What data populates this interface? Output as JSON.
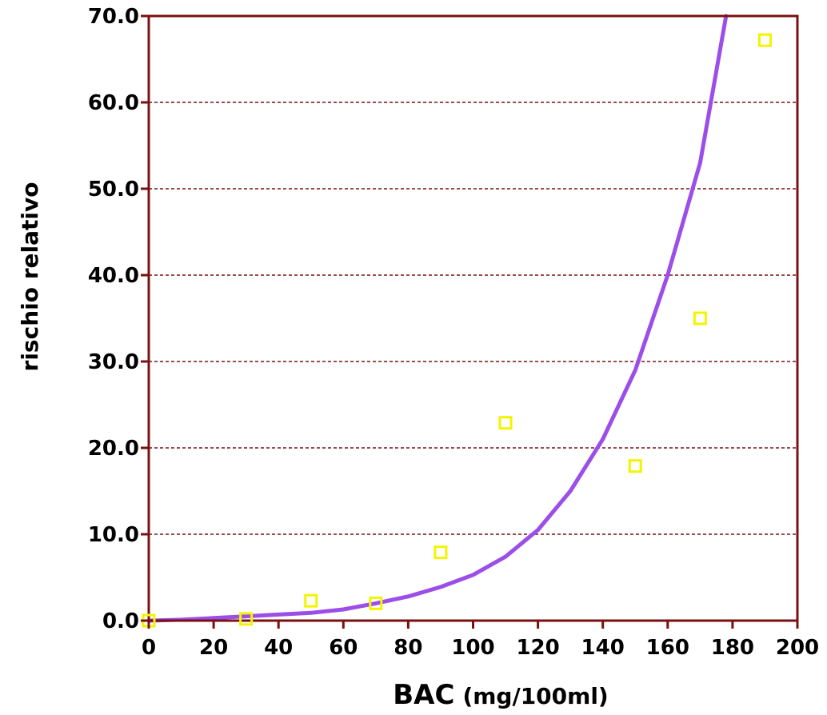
{
  "chart_data": {
    "type": "scatter",
    "xlabel_main": "BAC",
    "xlabel_unit": "(mg/100ml)",
    "ylabel": "rischio relativo",
    "xlim": [
      0,
      200
    ],
    "ylim": [
      0,
      70
    ],
    "x_ticks": [
      "0",
      "20",
      "40",
      "60",
      "80",
      "100",
      "120",
      "140",
      "160",
      "180",
      "200"
    ],
    "y_ticks": [
      "0.0",
      "10.0",
      "20.0",
      "30.0",
      "40.0",
      "50.0",
      "60.0",
      "70.0"
    ],
    "grid": "horizontal dashed",
    "points": [
      {
        "x": 0,
        "y": 0.0
      },
      {
        "x": 30,
        "y": 0.2
      },
      {
        "x": 50,
        "y": 2.3
      },
      {
        "x": 70,
        "y": 2.0
      },
      {
        "x": 90,
        "y": 7.9
      },
      {
        "x": 110,
        "y": 22.9
      },
      {
        "x": 150,
        "y": 17.9
      },
      {
        "x": 170,
        "y": 35.0
      },
      {
        "x": 190,
        "y": 67.2
      }
    ],
    "curve": [
      {
        "x": 0,
        "y": 0.0
      },
      {
        "x": 10,
        "y": 0.1
      },
      {
        "x": 20,
        "y": 0.3
      },
      {
        "x": 30,
        "y": 0.5
      },
      {
        "x": 40,
        "y": 0.7
      },
      {
        "x": 50,
        "y": 0.9
      },
      {
        "x": 60,
        "y": 1.3
      },
      {
        "x": 70,
        "y": 2.0
      },
      {
        "x": 80,
        "y": 2.8
      },
      {
        "x": 90,
        "y": 3.9
      },
      {
        "x": 100,
        "y": 5.3
      },
      {
        "x": 110,
        "y": 7.4
      },
      {
        "x": 120,
        "y": 10.5
      },
      {
        "x": 130,
        "y": 15.0
      },
      {
        "x": 140,
        "y": 21.0
      },
      {
        "x": 150,
        "y": 29.0
      },
      {
        "x": 160,
        "y": 40.0
      },
      {
        "x": 170,
        "y": 53.0
      },
      {
        "x": 178,
        "y": 70.0
      }
    ],
    "colors": {
      "frame": "#7a1010",
      "grid": "#7a1010",
      "curve": "#9b4ee8",
      "points": "#f4f400",
      "text": "#000000"
    }
  }
}
